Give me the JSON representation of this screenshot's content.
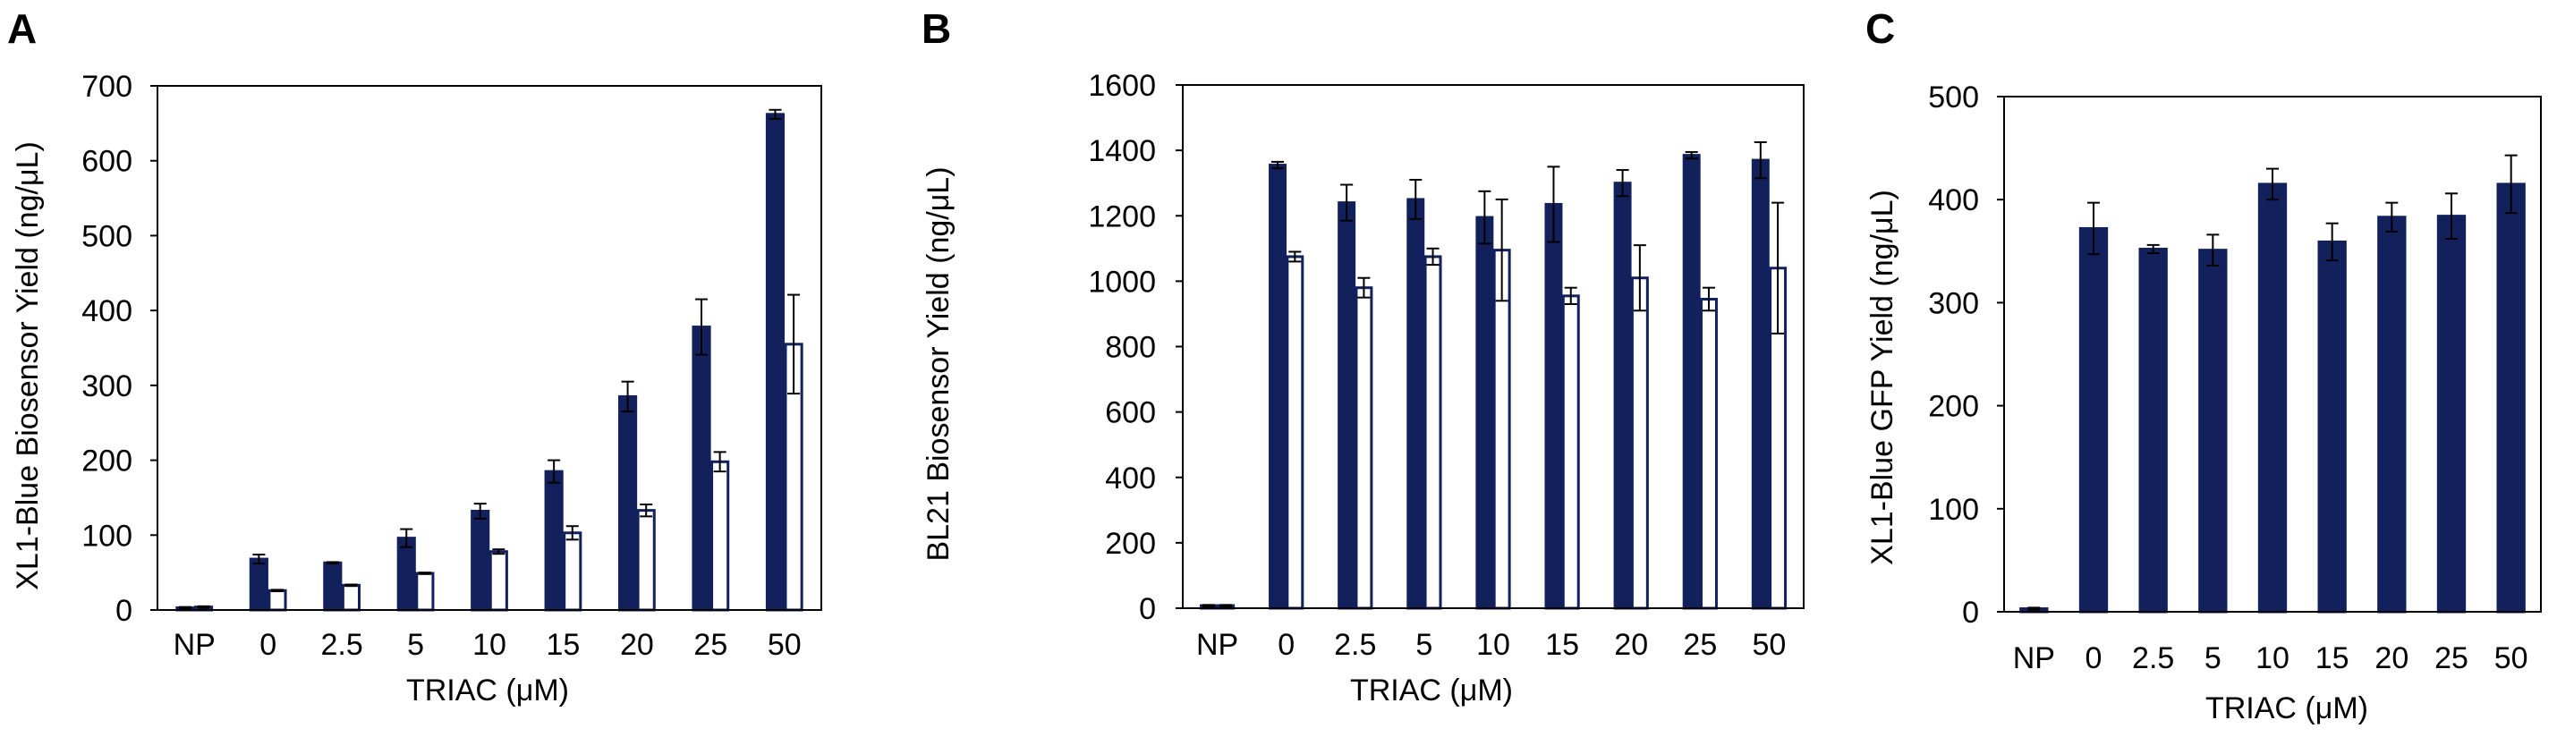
{
  "chart_data": [
    {
      "panel": "A",
      "type": "bar",
      "title": "",
      "xlabel": "TRIAC (μM)",
      "ylabel": "XL1-Blue Biosensor Yield (ng/μL)",
      "categories": [
        "NP",
        "0",
        "2.5",
        "5",
        "10",
        "15",
        "20",
        "25",
        "50"
      ],
      "ylim": [
        0,
        700
      ],
      "yticks": [
        0,
        100,
        200,
        300,
        400,
        500,
        600,
        700
      ],
      "grid": false,
      "series": [
        {
          "name": "filled",
          "color": "#12205c",
          "filled": true,
          "values": [
            3,
            68,
            63,
            96,
            132,
            185,
            285,
            378,
            662
          ],
          "errors": [
            1,
            6,
            1,
            12,
            10,
            15,
            20,
            37,
            6
          ]
        },
        {
          "name": "open",
          "color": "#12205c",
          "filled": false,
          "values": [
            4,
            26,
            33,
            49,
            78,
            103,
            133,
            198,
            355
          ],
          "errors": [
            1,
            1,
            1,
            1,
            3,
            9,
            8,
            13,
            66
          ]
        }
      ]
    },
    {
      "panel": "B",
      "type": "bar",
      "title": "",
      "xlabel": "TRIAC (μM)",
      "ylabel": "BL21 Biosensor Yield (ng/μL)",
      "categories": [
        "NP",
        "0",
        "2.5",
        "5",
        "10",
        "15",
        "20",
        "25",
        "50"
      ],
      "ylim": [
        0,
        1600
      ],
      "yticks": [
        0,
        200,
        400,
        600,
        800,
        1000,
        1200,
        1400,
        1600
      ],
      "grid": false,
      "series": [
        {
          "name": "filled",
          "color": "#12205c",
          "filled": true,
          "values": [
            8,
            1355,
            1240,
            1250,
            1195,
            1235,
            1300,
            1385,
            1370
          ],
          "errors": [
            2,
            10,
            55,
            60,
            80,
            115,
            40,
            10,
            55
          ]
        },
        {
          "name": "open",
          "color": "#12205c",
          "filled": false,
          "values": [
            8,
            1075,
            980,
            1075,
            1095,
            955,
            1010,
            945,
            1040
          ],
          "errors": [
            2,
            15,
            30,
            25,
            155,
            25,
            100,
            35,
            200
          ]
        }
      ]
    },
    {
      "panel": "C",
      "type": "bar",
      "title": "",
      "xlabel": "TRIAC (μM)",
      "ylabel": "XL1-Blue GFP Yield (ng/μL)",
      "categories": [
        "NP",
        "0",
        "2.5",
        "5",
        "10",
        "15",
        "20",
        "25",
        "50"
      ],
      "ylim": [
        0,
        500
      ],
      "yticks": [
        0,
        100,
        200,
        300,
        400,
        500
      ],
      "grid": false,
      "series": [
        {
          "name": "filled",
          "color": "#12205c",
          "filled": true,
          "values": [
            3,
            372,
            352,
            351,
            415,
            359,
            383,
            384,
            415
          ],
          "errors": [
            1,
            25,
            4,
            15,
            15,
            18,
            14,
            22,
            28
          ]
        }
      ]
    }
  ]
}
